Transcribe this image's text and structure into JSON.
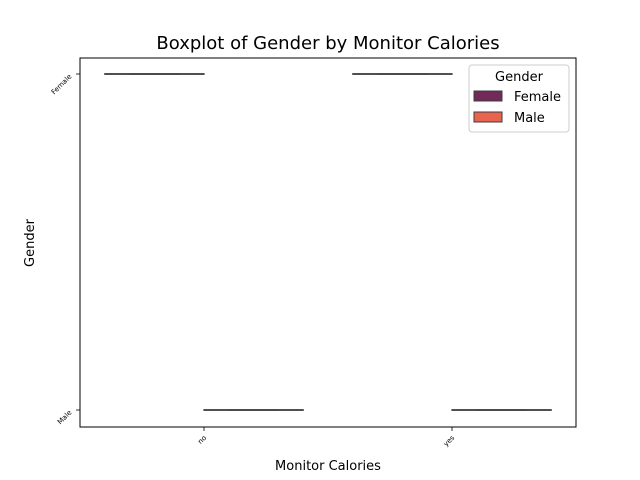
{
  "chart_data": {
    "type": "box",
    "title": "Boxplot of Gender by Monitor Calories",
    "xlabel": "Monitor Calories",
    "ylabel": "Gender",
    "categories": [
      "no",
      "yes"
    ],
    "y_categories": [
      "Female",
      "Male"
    ],
    "legend": {
      "title": "Gender",
      "placement": "top-right",
      "entries": [
        "Female",
        "Male"
      ]
    },
    "series": [
      {
        "name": "Female",
        "color": "#722a58",
        "boxes": [
          {
            "category": "no",
            "min": "Female",
            "q1": "Female",
            "median": "Female",
            "q3": "Female",
            "max": "Female"
          },
          {
            "category": "yes",
            "min": "Female",
            "q1": "Female",
            "median": "Female",
            "q3": "Female",
            "max": "Female"
          }
        ]
      },
      {
        "name": "Male",
        "color": "#e8644f",
        "boxes": [
          {
            "category": "no",
            "min": "Male",
            "q1": "Male",
            "median": "Male",
            "q3": "Male",
            "max": "Male"
          },
          {
            "category": "yes",
            "min": "Male",
            "q1": "Male",
            "median": "Male",
            "q3": "Male",
            "max": "Male"
          }
        ]
      }
    ],
    "grid": false
  }
}
